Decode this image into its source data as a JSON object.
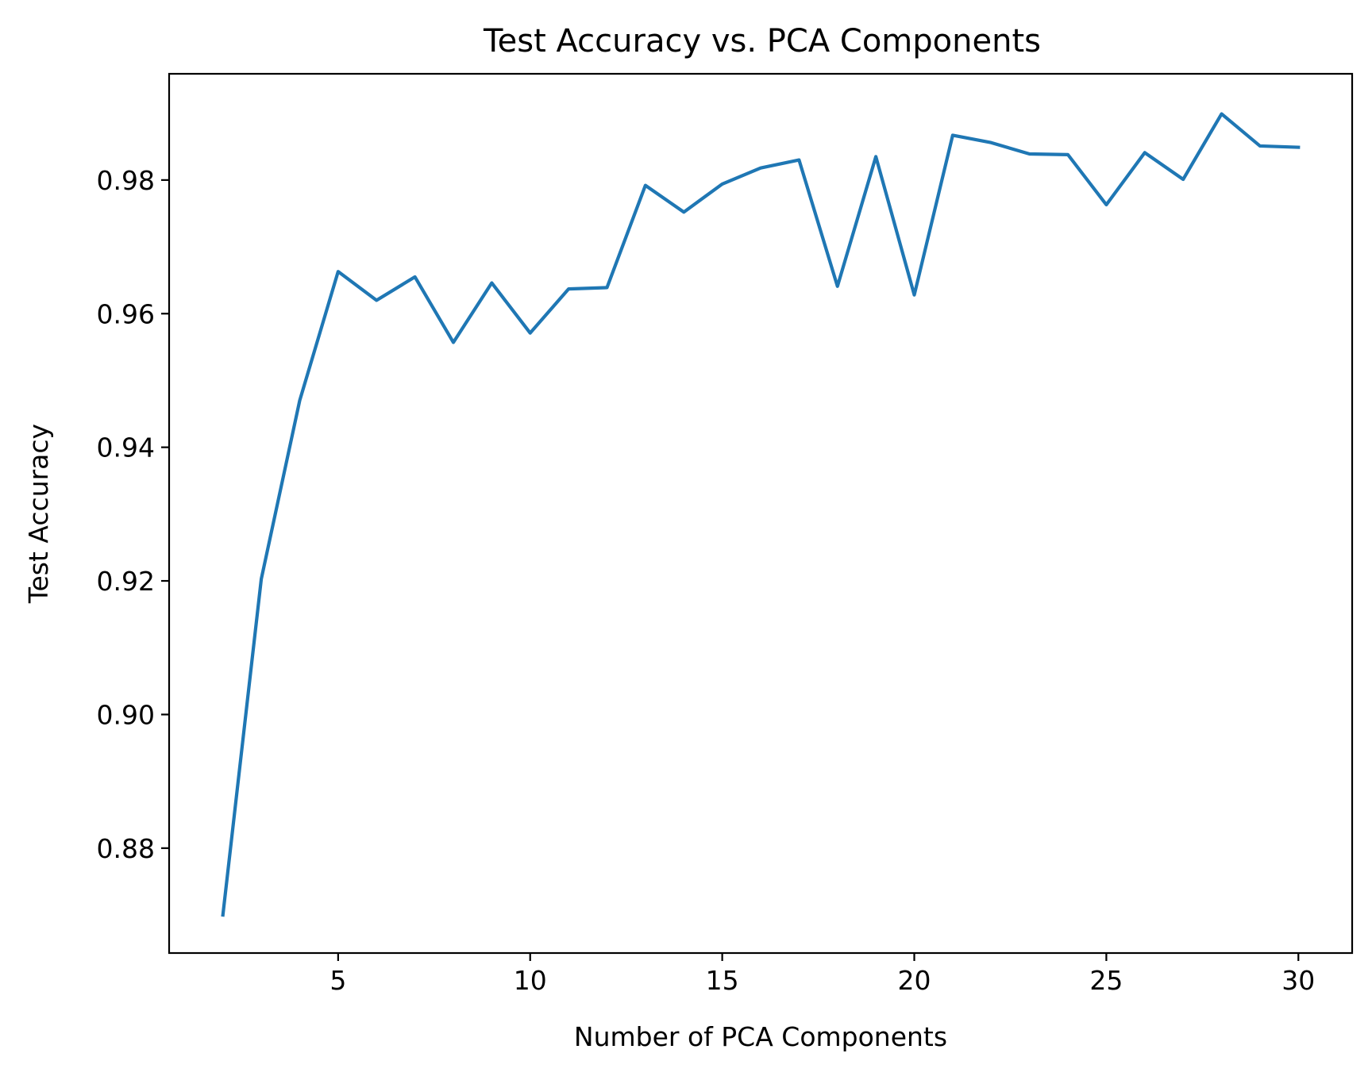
{
  "chart_data": {
    "type": "line",
    "title": "Test Accuracy vs. PCA Components",
    "xlabel": "Number of PCA Components",
    "ylabel": "Test Accuracy",
    "xlim": [
      0.6,
      31.4
    ],
    "ylim": [
      0.8643,
      0.9959
    ],
    "x_ticks": [
      5,
      10,
      15,
      20,
      25,
      30
    ],
    "x_tick_labels": [
      "5",
      "10",
      "15",
      "20",
      "25",
      "30"
    ],
    "y_ticks": [
      0.88,
      0.9,
      0.92,
      0.94,
      0.96,
      0.98
    ],
    "y_tick_labels": [
      "0.88",
      "0.90",
      "0.92",
      "0.94",
      "0.96",
      "0.98"
    ],
    "grid": false,
    "legend": "none",
    "series": [
      {
        "color": "#1f77b4",
        "x": [
          2,
          3,
          4,
          5,
          6,
          7,
          8,
          9,
          10,
          11,
          12,
          13,
          14,
          15,
          16,
          17,
          18,
          19,
          20,
          21,
          22,
          23,
          24,
          25,
          26,
          27,
          28,
          29,
          30
        ],
        "values": [
          0.87,
          0.9203,
          0.947,
          0.9663,
          0.962,
          0.9655,
          0.9557,
          0.9646,
          0.9571,
          0.9637,
          0.9639,
          0.9792,
          0.9752,
          0.9794,
          0.9818,
          0.983,
          0.9641,
          0.9835,
          0.9628,
          0.9867,
          0.9856,
          0.9839,
          0.9838,
          0.9763,
          0.9841,
          0.9801,
          0.9899,
          0.9851,
          0.9849
        ]
      }
    ]
  }
}
